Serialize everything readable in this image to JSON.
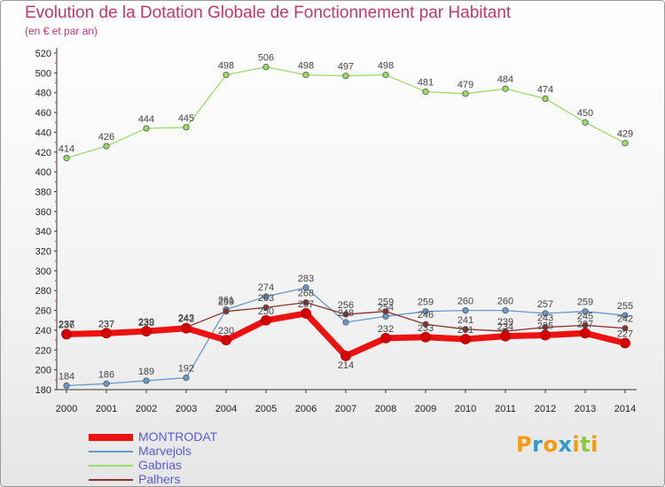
{
  "header": {
    "title": "Evolution de la Dotation Globale de Fonctionnement par Habitant",
    "subtitle": "(en € et par an)"
  },
  "logo": {
    "text": "Proxiti",
    "colors": [
      "#f39c12",
      "#3399cc",
      "#f39c12",
      "#3399cc",
      "#f39c12",
      "#8cc63f",
      "#f39c12"
    ]
  },
  "chart_data": {
    "type": "line",
    "x": [
      "2000",
      "2001",
      "2002",
      "2003",
      "2004",
      "2005",
      "2006",
      "2007",
      "2008",
      "2009",
      "2010",
      "2011",
      "2012",
      "2013",
      "2014"
    ],
    "ylim": [
      180,
      520
    ],
    "yticks": [
      180,
      200,
      220,
      240,
      260,
      280,
      300,
      320,
      340,
      360,
      380,
      400,
      420,
      440,
      460,
      480,
      500,
      520
    ],
    "grid": false,
    "legend_position": "bottom-left",
    "series": [
      {
        "name": "MONTRODAT",
        "color": "#ee1111",
        "thick": true,
        "values": [
          236,
          237,
          239,
          242,
          230,
          250,
          257,
          214,
          232,
          233,
          231,
          234,
          235,
          237,
          227
        ]
      },
      {
        "name": "Marvejols",
        "color": "#6699cc",
        "thick": false,
        "values": [
          184,
          186,
          189,
          192,
          261,
          274,
          283,
          248,
          254,
          259,
          260,
          260,
          257,
          259,
          255
        ]
      },
      {
        "name": "Gabrias",
        "color": "#99dd66",
        "thick": false,
        "values": [
          414,
          426,
          444,
          445,
          498,
          506,
          498,
          497,
          498,
          481,
          479,
          484,
          474,
          450,
          429
        ]
      },
      {
        "name": "Palhers",
        "color": "#883333",
        "thick": false,
        "values": [
          237,
          237,
          238,
          243,
          259,
          263,
          268,
          256,
          259,
          246,
          241,
          239,
          243,
          245,
          242
        ]
      }
    ]
  }
}
